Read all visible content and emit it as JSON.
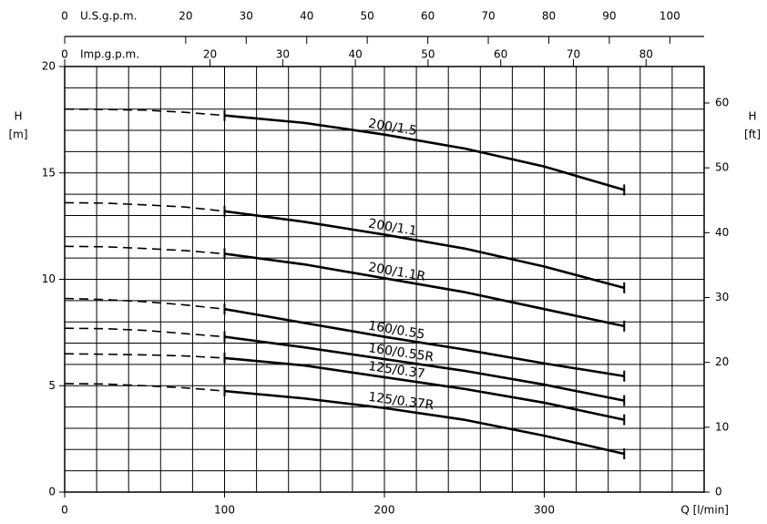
{
  "chart_data": {
    "type": "line",
    "x_label": "Q [l/min]",
    "y_label": "H",
    "y_unit": "[m]",
    "y2_label": "H",
    "y2_unit": "[ft]",
    "top_label": "U.S.g.p.m.",
    "top2_label": "Imp.g.p.m.",
    "x": [
      0,
      25,
      50,
      75,
      100,
      150,
      200,
      250,
      300,
      350
    ],
    "dashed_below": 100,
    "color": "#000000",
    "series": [
      {
        "name": "200/1.5",
        "values": [
          18.0,
          17.98,
          17.95,
          17.85,
          17.7,
          17.35,
          16.8,
          16.15,
          15.3,
          14.2
        ]
      },
      {
        "name": "200/1.1",
        "values": [
          13.6,
          13.58,
          13.5,
          13.4,
          13.2,
          12.7,
          12.1,
          11.45,
          10.6,
          9.6
        ]
      },
      {
        "name": "200/1.1R",
        "values": [
          11.55,
          11.53,
          11.45,
          11.35,
          11.2,
          10.7,
          10.05,
          9.4,
          8.6,
          7.8
        ]
      },
      {
        "name": "160/0.55",
        "values": [
          9.1,
          9.05,
          8.95,
          8.8,
          8.6,
          7.95,
          7.3,
          6.7,
          6.05,
          5.45
        ]
      },
      {
        "name": "160/0.55R",
        "values": [
          7.7,
          7.68,
          7.6,
          7.45,
          7.3,
          6.8,
          6.25,
          5.7,
          5.05,
          4.3
        ]
      },
      {
        "name": "125/0.37",
        "values": [
          6.5,
          6.48,
          6.45,
          6.4,
          6.3,
          5.95,
          5.4,
          4.85,
          4.2,
          3.4
        ]
      },
      {
        "name": "125/0.37R",
        "values": [
          5.1,
          5.08,
          5.0,
          4.9,
          4.75,
          4.4,
          3.95,
          3.4,
          2.65,
          1.8
        ]
      }
    ],
    "xlim": [
      0,
      400
    ],
    "xticks": [
      0,
      100,
      200,
      300
    ],
    "xgrid_step": 20,
    "ylim": [
      0,
      20
    ],
    "yticks": [
      0,
      5,
      10,
      15,
      20
    ],
    "ygrid_step": 1,
    "y2lim": [
      0,
      65.62
    ],
    "y2ticks": [
      0,
      10,
      20,
      30,
      40,
      50,
      60
    ],
    "toplim": [
      0,
      105.67
    ],
    "topticks": [
      0,
      20,
      30,
      40,
      50,
      60,
      70,
      80,
      90,
      100
    ],
    "top2lim": [
      0,
      87.99
    ],
    "top2ticks": [
      0,
      20,
      30,
      40,
      50,
      60,
      70,
      80
    ]
  }
}
